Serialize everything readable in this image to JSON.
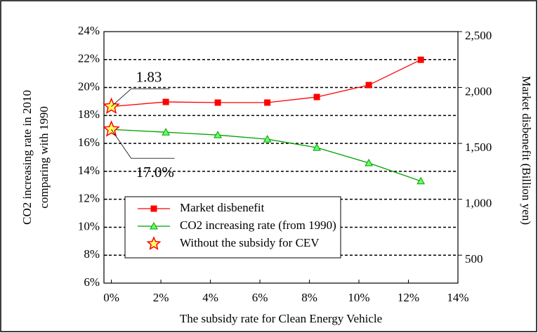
{
  "chart_data": {
    "type": "line",
    "xlabel": "The subsidy rate for Clean Energy Vehicle",
    "ylabel": [
      "CO2 increasing rate in 2010",
      "comparing with 1990"
    ],
    "y2label": "Market disbenefit (Billion yen)",
    "x": [
      0,
      2.2,
      4.3,
      6.3,
      8.3,
      10.4,
      12.5
    ],
    "series": [
      {
        "name": "Market disbenefit",
        "color": "#ff0000",
        "marker": "square",
        "axis": "y2",
        "values": [
          1830,
          1871,
          1865,
          1865,
          1915,
          2022,
          2248
        ],
        "value_labels": [
          "1.83",
          null,
          null,
          null,
          null,
          null,
          null
        ]
      },
      {
        "name": "CO2 increasing rate (from 1990)",
        "color": "#00a000",
        "marker_fill": "#66ff66",
        "marker": "triangle",
        "values": [
          17.0,
          16.8,
          16.6,
          16.3,
          15.7,
          14.6,
          13.3
        ],
        "value_labels": [
          "17.0%",
          null,
          null,
          null,
          null,
          null,
          null
        ]
      }
    ],
    "baseline": {
      "name": "Without the subsidy for CEV",
      "color": "#ffff66",
      "edge": "#ff0000",
      "marker": "star"
    },
    "xlim": [
      -0.3,
      14
    ],
    "xticks": [
      {
        "value": 0,
        "label": "0%"
      },
      {
        "value": 2,
        "label": "2%"
      },
      {
        "value": 4,
        "label": "4%"
      },
      {
        "value": 6,
        "label": "6%"
      },
      {
        "value": 8,
        "label": "8%"
      },
      {
        "value": 10,
        "label": "10%"
      },
      {
        "value": 12,
        "label": "12%"
      },
      {
        "value": 14,
        "label": "14%"
      }
    ],
    "ylim": [
      6,
      24
    ],
    "yticks": [
      {
        "value": 6,
        "label": "6%"
      },
      {
        "value": 8,
        "label": "8%"
      },
      {
        "value": 10,
        "label": "10%"
      },
      {
        "value": 12,
        "label": "12%"
      },
      {
        "value": 14,
        "label": "14%"
      },
      {
        "value": 16,
        "label": "16%"
      },
      {
        "value": 18,
        "label": "18%"
      },
      {
        "value": 20,
        "label": "20%"
      },
      {
        "value": 22,
        "label": "22%"
      },
      {
        "value": 24,
        "label": "24%"
      }
    ],
    "y2lim": [
      250,
      2500
    ],
    "y2ticks": [
      500,
      {
        "value": 1000,
        "label": "1,000"
      },
      {
        "value": 1500,
        "label": "1,500"
      },
      {
        "value": 2000,
        "label": "2,000"
      },
      {
        "value": 2500,
        "label": "2,500"
      }
    ],
    "grid": true
  }
}
